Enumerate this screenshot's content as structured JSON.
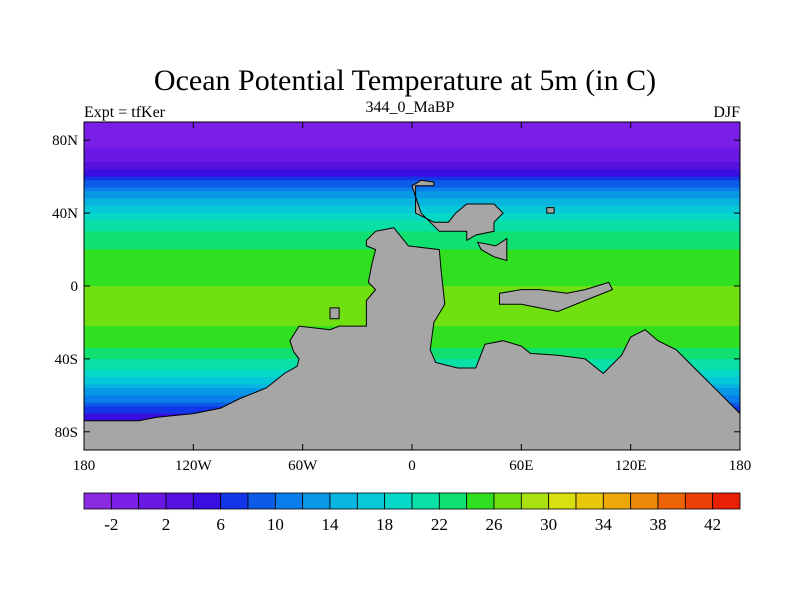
{
  "chart_data": {
    "type": "heatmap",
    "title": "Ocean Potential Temperature at 5m (in C)",
    "left_subtitle": "Expt = tfKer",
    "center_subtitle": "344_0_MaBP",
    "right_subtitle": "DJF",
    "xlim": [
      -180,
      180
    ],
    "ylim": [
      -90,
      90
    ],
    "x_ticks": [
      {
        "value": -180,
        "label": "180"
      },
      {
        "value": -120,
        "label": "120W"
      },
      {
        "value": -60,
        "label": "60W"
      },
      {
        "value": 0,
        "label": "0"
      },
      {
        "value": 60,
        "label": "60E"
      },
      {
        "value": 120,
        "label": "120E"
      },
      {
        "value": 180,
        "label": "180"
      }
    ],
    "y_ticks": [
      {
        "value": 80,
        "label": "80N"
      },
      {
        "value": 40,
        "label": "40N"
      },
      {
        "value": 0,
        "label": "0"
      },
      {
        "value": -40,
        "label": "40S"
      },
      {
        "value": -80,
        "label": "80S"
      }
    ],
    "land_color": "#a6a6a6",
    "colorbar": {
      "levels": [
        -4,
        -2,
        0,
        2,
        4,
        6,
        8,
        10,
        12,
        14,
        16,
        18,
        20,
        22,
        24,
        26,
        28,
        30,
        32,
        34,
        36,
        38,
        40,
        42,
        44
      ],
      "labeled_levels": [
        -2,
        2,
        6,
        10,
        14,
        18,
        22,
        26,
        30,
        34,
        38,
        42
      ],
      "colors": [
        "#8a2be2",
        "#7a1fe6",
        "#6a18e4",
        "#5610e0",
        "#3a0ee0",
        "#1236e8",
        "#0c5ce8",
        "#0a7eea",
        "#0898e6",
        "#08b4e0",
        "#06c8d8",
        "#06d8c8",
        "#08e0a8",
        "#10e070",
        "#30e020",
        "#70e010",
        "#a8e010",
        "#d8e010",
        "#e8c808",
        "#eca808",
        "#ec8808",
        "#ec6406",
        "#ec4006",
        "#e82006"
      ]
    },
    "sst_by_latitude": [
      {
        "lat": 90,
        "value": -1
      },
      {
        "lat": 75,
        "value": 0
      },
      {
        "lat": 65,
        "value": 3
      },
      {
        "lat": 58,
        "value": 8
      },
      {
        "lat": 50,
        "value": 13
      },
      {
        "lat": 40,
        "value": 18
      },
      {
        "lat": 30,
        "value": 22
      },
      {
        "lat": 15,
        "value": 25
      },
      {
        "lat": 0,
        "value": 26
      },
      {
        "lat": -15,
        "value": 27
      },
      {
        "lat": -30,
        "value": 25
      },
      {
        "lat": -45,
        "value": 20
      },
      {
        "lat": -55,
        "value": 15
      },
      {
        "lat": -65,
        "value": 9
      },
      {
        "lat": -75,
        "value": 3
      },
      {
        "lat": -90,
        "value": -1
      }
    ],
    "land_masses": [
      {
        "name": "southern-continent",
        "outline": [
          [
            -180,
            -90
          ],
          [
            -180,
            -74
          ],
          [
            -165,
            -74
          ],
          [
            -150,
            -74
          ],
          [
            -140,
            -72
          ],
          [
            -120,
            -70
          ],
          [
            -105,
            -67
          ],
          [
            -95,
            -62
          ],
          [
            -80,
            -56
          ],
          [
            -70,
            -48
          ],
          [
            -63,
            -44
          ],
          [
            -62,
            -40
          ],
          [
            -65,
            -36
          ],
          [
            -67,
            -30
          ],
          [
            -62,
            -22
          ],
          [
            -45,
            -24
          ],
          [
            -40,
            -22
          ],
          [
            -25,
            -22
          ],
          [
            -25,
            -8
          ],
          [
            -20,
            -2
          ],
          [
            -24,
            2
          ],
          [
            -22,
            12
          ],
          [
            -20,
            20
          ],
          [
            -25,
            22
          ],
          [
            -25,
            25
          ],
          [
            -20,
            30
          ],
          [
            -10,
            32
          ],
          [
            -2,
            22
          ],
          [
            15,
            20
          ],
          [
            16,
            8
          ],
          [
            18,
            -10
          ],
          [
            12,
            -20
          ],
          [
            10,
            -35
          ],
          [
            13,
            -42
          ],
          [
            25,
            -45
          ],
          [
            35,
            -45
          ],
          [
            40,
            -32
          ],
          [
            50,
            -30
          ],
          [
            60,
            -33
          ],
          [
            65,
            -37
          ],
          [
            80,
            -38
          ],
          [
            95,
            -40
          ],
          [
            105,
            -48
          ],
          [
            115,
            -38
          ],
          [
            120,
            -28
          ],
          [
            128,
            -24
          ],
          [
            135,
            -30
          ],
          [
            145,
            -35
          ],
          [
            155,
            -45
          ],
          [
            165,
            -55
          ],
          [
            175,
            -65
          ],
          [
            180,
            -70
          ],
          [
            180,
            -90
          ]
        ]
      },
      {
        "name": "north-continent",
        "outline": [
          [
            2,
            55
          ],
          [
            2,
            40
          ],
          [
            12,
            35
          ],
          [
            20,
            35
          ],
          [
            24,
            40
          ],
          [
            30,
            45
          ],
          [
            45,
            45
          ],
          [
            50,
            40
          ],
          [
            45,
            35
          ],
          [
            45,
            30
          ],
          [
            35,
            28
          ],
          [
            30,
            25
          ],
          [
            30,
            30
          ],
          [
            15,
            30
          ],
          [
            10,
            35
          ],
          [
            5,
            40
          ],
          [
            0,
            55
          ],
          [
            5,
            58
          ],
          [
            12,
            57
          ],
          [
            12,
            55
          ]
        ]
      },
      {
        "name": "east-strip",
        "outline": [
          [
            48,
            -4
          ],
          [
            48,
            -10
          ],
          [
            60,
            -10
          ],
          [
            80,
            -14
          ],
          [
            100,
            -6
          ],
          [
            110,
            -2
          ],
          [
            108,
            2
          ],
          [
            95,
            -2
          ],
          [
            85,
            -4
          ],
          [
            70,
            -2
          ],
          [
            60,
            -2
          ]
        ]
      },
      {
        "name": "east-peninsula",
        "outline": [
          [
            36,
            24
          ],
          [
            38,
            20
          ],
          [
            45,
            16
          ],
          [
            52,
            14
          ],
          [
            52,
            26
          ],
          [
            46,
            22
          ]
        ]
      },
      {
        "name": "small-island",
        "outline": [
          [
            -45,
            -18
          ],
          [
            -45,
            -12
          ],
          [
            -40,
            -12
          ],
          [
            -40,
            -18
          ]
        ]
      },
      {
        "name": "tiny-island",
        "outline": [
          [
            74,
            40
          ],
          [
            78,
            40
          ],
          [
            78,
            43
          ],
          [
            74,
            43
          ]
        ]
      }
    ]
  }
}
